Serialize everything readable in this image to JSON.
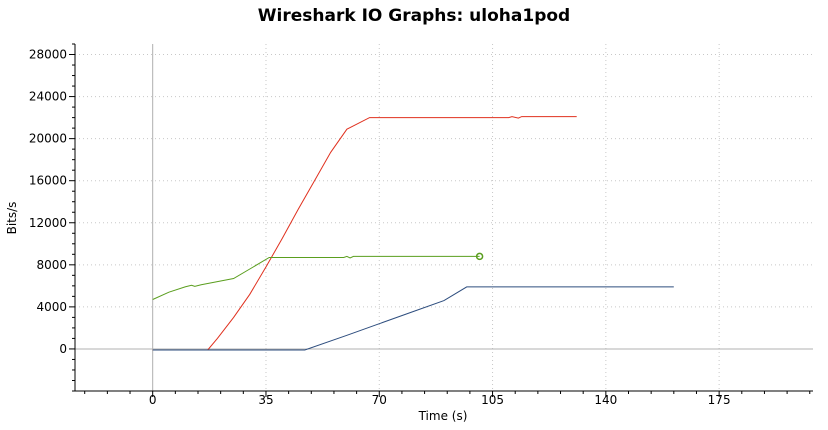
{
  "chart_data": {
    "type": "line",
    "title": "Wireshark IO Graphs: uloha1pod",
    "xlabel": "Time (s)",
    "ylabel": "Bits/s",
    "xlim": [
      -24,
      204
    ],
    "ylim": [
      -4000,
      29000
    ],
    "xticks": [
      0,
      35,
      70,
      105,
      140,
      175
    ],
    "yticks": [
      0,
      4000,
      8000,
      12000,
      16000,
      20000,
      24000,
      28000
    ],
    "grid": true,
    "series": [
      {
        "color": "#e0301e",
        "x": [
          0,
          17,
          20,
          25,
          30,
          35,
          40,
          45,
          50,
          55,
          60,
          67,
          75,
          85,
          95,
          110,
          111,
          113,
          114,
          120,
          131
        ],
        "y": [
          -100,
          -100,
          1000,
          3000,
          5200,
          7800,
          10500,
          13300,
          16000,
          18700,
          20900,
          22000,
          22000,
          22000,
          22000,
          22000,
          22100,
          21950,
          22100,
          22100,
          22100
        ]
      },
      {
        "color": "#5a9e1e",
        "x": [
          0,
          5,
          10,
          12,
          13,
          15,
          20,
          25,
          30,
          36,
          40,
          50,
          59,
          60,
          61,
          62,
          70,
          80,
          90,
          101
        ],
        "y": [
          4700,
          5400,
          5900,
          6050,
          5950,
          6100,
          6400,
          6700,
          7600,
          8700,
          8700,
          8700,
          8700,
          8800,
          8650,
          8800,
          8800,
          8800,
          8800,
          8800
        ],
        "end_marker": "circle"
      },
      {
        "color": "#2d4d7e",
        "x": [
          0,
          20,
          47,
          60,
          70,
          80,
          90,
          97,
          110,
          130,
          150,
          161
        ],
        "y": [
          -100,
          -100,
          -100,
          1300,
          2400,
          3500,
          4600,
          5900,
          5900,
          5900,
          5900,
          5900
        ]
      }
    ]
  }
}
